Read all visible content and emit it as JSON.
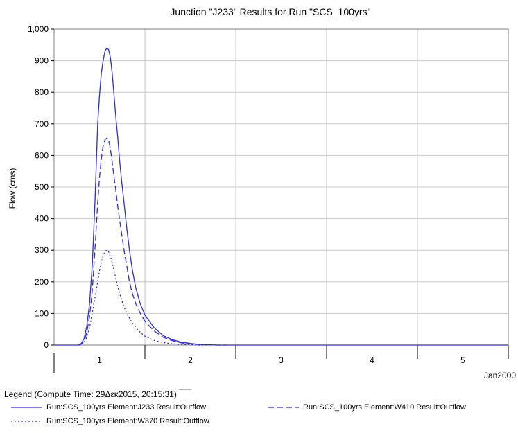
{
  "chart_data": {
    "type": "line",
    "title": "Junction \"J233\" Results for Run \"SCS_100yrs\"",
    "xlabel": "Jan2000",
    "ylabel": "Flow (cms)",
    "ylim": [
      0,
      1000
    ],
    "xlim": [
      0.5,
      5.5
    ],
    "y_ticks": [
      "0",
      "100",
      "200",
      "300",
      "400",
      "500",
      "600",
      "700",
      "800",
      "900",
      "1,000"
    ],
    "x_ticks": [
      "1",
      "2",
      "3",
      "4",
      "5"
    ],
    "grid": true,
    "colors": {
      "series": "#2b2bd9",
      "grid": "#c8c8c8",
      "axis": "#000000"
    },
    "series": [
      {
        "name": "Run:SCS_100yrs Element:J233 Result:Outflow",
        "style": "solid",
        "x": [
          0.5,
          0.77,
          0.8,
          0.83,
          0.86,
          0.89,
          0.92,
          0.95,
          0.98,
          1.0,
          1.02,
          1.04,
          1.06,
          1.08,
          1.1,
          1.12,
          1.14,
          1.16,
          1.18,
          1.2,
          1.22,
          1.24,
          1.27,
          1.3,
          1.33,
          1.36,
          1.4,
          1.45,
          1.5,
          1.6,
          1.7,
          1.8,
          1.9,
          2.0,
          2.1,
          2.2,
          2.3,
          2.4,
          2.5,
          3.0,
          4.0,
          5.0,
          5.5
        ],
        "y": [
          0,
          0,
          5,
          20,
          60,
          130,
          250,
          450,
          700,
          790,
          860,
          900,
          930,
          940,
          935,
          910,
          860,
          790,
          720,
          660,
          590,
          530,
          450,
          370,
          300,
          240,
          180,
          130,
          95,
          55,
          30,
          17,
          9,
          5,
          2,
          1,
          0,
          0,
          0,
          0,
          0,
          0,
          0
        ]
      },
      {
        "name": "Run:SCS_100yrs Element:W410 Result:Outflow",
        "style": "dashed",
        "x": [
          0.77,
          0.8,
          0.83,
          0.86,
          0.89,
          0.92,
          0.95,
          0.98,
          1.0,
          1.02,
          1.04,
          1.06,
          1.08,
          1.1,
          1.12,
          1.14,
          1.16,
          1.18,
          1.2,
          1.22,
          1.24,
          1.27,
          1.3,
          1.33,
          1.36,
          1.4,
          1.45,
          1.5,
          1.6,
          1.7,
          1.8,
          1.9,
          2.0,
          2.1,
          2.2,
          2.3,
          2.4
        ],
        "y": [
          0,
          3,
          12,
          40,
          90,
          170,
          300,
          450,
          530,
          590,
          630,
          650,
          655,
          650,
          620,
          580,
          530,
          490,
          440,
          400,
          360,
          300,
          250,
          200,
          165,
          130,
          100,
          75,
          45,
          25,
          14,
          7,
          4,
          2,
          1,
          0,
          0
        ]
      },
      {
        "name": "Run:SCS_100yrs Element:W370 Result:Outflow",
        "style": "dotted",
        "x": [
          0.77,
          0.8,
          0.83,
          0.86,
          0.89,
          0.92,
          0.95,
          0.98,
          1.0,
          1.02,
          1.04,
          1.06,
          1.08,
          1.1,
          1.12,
          1.14,
          1.16,
          1.18,
          1.2,
          1.23,
          1.26,
          1.3,
          1.35,
          1.4,
          1.45,
          1.5,
          1.6,
          1.7,
          1.8,
          1.9,
          2.0,
          2.1,
          2.2
        ],
        "y": [
          0,
          2,
          8,
          25,
          55,
          100,
          150,
          200,
          235,
          262,
          283,
          296,
          300,
          295,
          280,
          260,
          235,
          210,
          185,
          155,
          128,
          100,
          75,
          55,
          40,
          28,
          15,
          8,
          4,
          2,
          1,
          0,
          0
        ]
      }
    ]
  },
  "legend": {
    "title": "Legend (Compute Time: 29Δεκ2015, 20:15:31)"
  }
}
